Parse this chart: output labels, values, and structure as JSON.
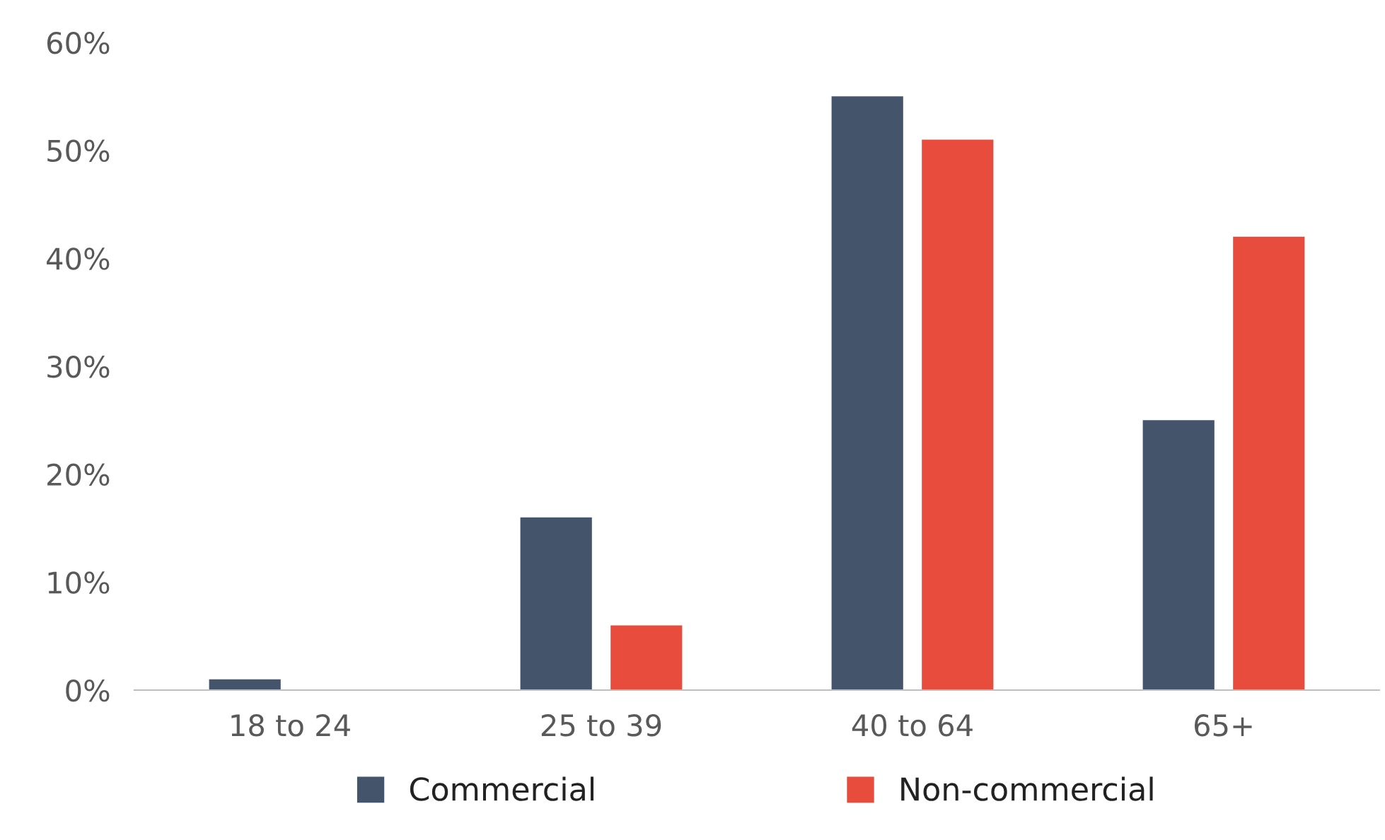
{
  "chart_data": {
    "type": "bar",
    "categories": [
      "18 to 24",
      "25 to 39",
      "40 to 64",
      "65+"
    ],
    "series": [
      {
        "name": "Commercial",
        "color": "#44546a",
        "values": [
          1,
          16,
          55,
          25
        ]
      },
      {
        "name": "Non-commercial",
        "color": "#e84c3d",
        "values": [
          0,
          6,
          51,
          42
        ]
      }
    ],
    "ylim": [
      0,
      60
    ],
    "yticks": [
      {
        "value": 0,
        "label": "0%"
      },
      {
        "value": 10,
        "label": "10%"
      },
      {
        "value": 20,
        "label": "20%"
      },
      {
        "value": 30,
        "label": "30%"
      },
      {
        "value": 40,
        "label": "40%"
      },
      {
        "value": 50,
        "label": "50%"
      },
      {
        "value": 60,
        "label": "60%"
      }
    ],
    "grid": false,
    "legend": "bottom"
  }
}
